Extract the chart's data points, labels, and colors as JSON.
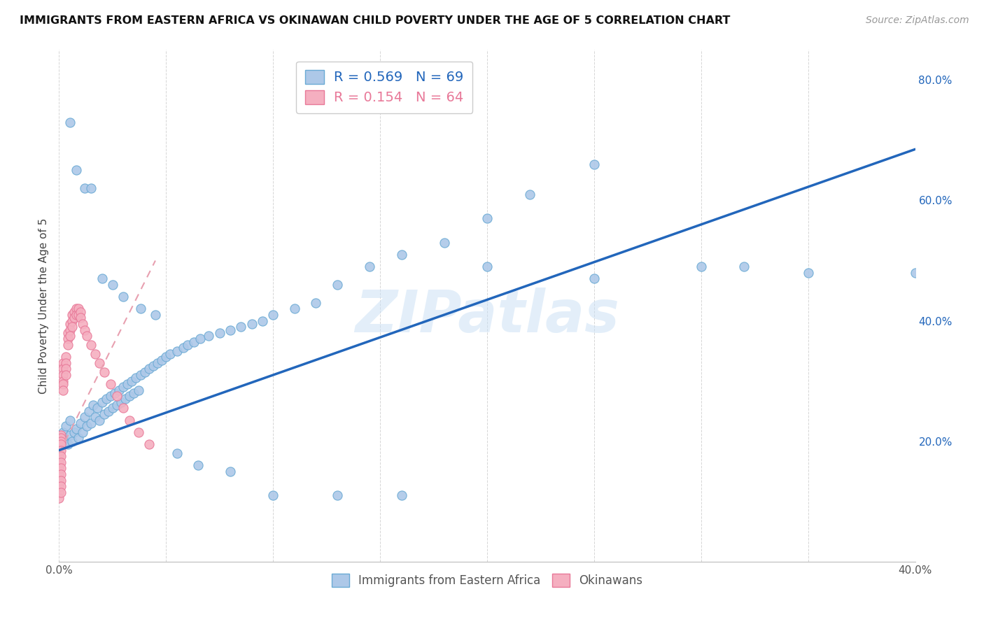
{
  "title": "IMMIGRANTS FROM EASTERN AFRICA VS OKINAWAN CHILD POVERTY UNDER THE AGE OF 5 CORRELATION CHART",
  "source": "Source: ZipAtlas.com",
  "ylabel": "Child Poverty Under the Age of 5",
  "xlim": [
    0,
    0.4
  ],
  "ylim": [
    0,
    0.85
  ],
  "x_ticks": [
    0.0,
    0.05,
    0.1,
    0.15,
    0.2,
    0.25,
    0.3,
    0.35,
    0.4
  ],
  "x_tick_labels": [
    "0.0%",
    "",
    "",
    "",
    "",
    "",
    "",
    "",
    "40.0%"
  ],
  "y_ticks_right": [
    0.2,
    0.4,
    0.6,
    0.8
  ],
  "y_tick_labels_right": [
    "20.0%",
    "40.0%",
    "60.0%",
    "80.0%"
  ],
  "blue_R": 0.569,
  "blue_N": 69,
  "pink_R": 0.154,
  "pink_N": 64,
  "blue_scatter_x": [
    0.001,
    0.002,
    0.003,
    0.003,
    0.004,
    0.005,
    0.005,
    0.006,
    0.007,
    0.008,
    0.009,
    0.01,
    0.011,
    0.012,
    0.013,
    0.014,
    0.015,
    0.016,
    0.017,
    0.018,
    0.019,
    0.02,
    0.021,
    0.022,
    0.023,
    0.024,
    0.025,
    0.026,
    0.027,
    0.028,
    0.029,
    0.03,
    0.031,
    0.032,
    0.033,
    0.034,
    0.035,
    0.036,
    0.037,
    0.038,
    0.04,
    0.042,
    0.044,
    0.046,
    0.048,
    0.05,
    0.052,
    0.055,
    0.058,
    0.06,
    0.063,
    0.066,
    0.07,
    0.075,
    0.08,
    0.085,
    0.09,
    0.095,
    0.1,
    0.11,
    0.12,
    0.13,
    0.145,
    0.16,
    0.18,
    0.2,
    0.22,
    0.25,
    0.32
  ],
  "blue_scatter_y": [
    0.205,
    0.215,
    0.2,
    0.225,
    0.195,
    0.21,
    0.235,
    0.2,
    0.215,
    0.22,
    0.205,
    0.23,
    0.215,
    0.24,
    0.225,
    0.25,
    0.23,
    0.26,
    0.24,
    0.255,
    0.235,
    0.265,
    0.245,
    0.27,
    0.25,
    0.275,
    0.255,
    0.28,
    0.26,
    0.285,
    0.265,
    0.29,
    0.27,
    0.295,
    0.275,
    0.3,
    0.28,
    0.305,
    0.285,
    0.31,
    0.315,
    0.32,
    0.325,
    0.33,
    0.335,
    0.34,
    0.345,
    0.35,
    0.355,
    0.36,
    0.365,
    0.37,
    0.375,
    0.38,
    0.385,
    0.39,
    0.395,
    0.4,
    0.41,
    0.42,
    0.43,
    0.46,
    0.49,
    0.51,
    0.53,
    0.57,
    0.61,
    0.66,
    0.49
  ],
  "blue_scatter_x2": [
    0.005,
    0.008,
    0.012,
    0.015,
    0.02,
    0.025,
    0.03,
    0.038,
    0.045,
    0.055,
    0.065,
    0.08,
    0.1,
    0.13,
    0.16,
    0.2,
    0.25,
    0.3,
    0.35,
    0.4
  ],
  "blue_scatter_y2": [
    0.73,
    0.65,
    0.62,
    0.62,
    0.47,
    0.46,
    0.44,
    0.42,
    0.41,
    0.18,
    0.16,
    0.15,
    0.11,
    0.11,
    0.11,
    0.49,
    0.47,
    0.49,
    0.48,
    0.48
  ],
  "blue_trendline_x": [
    0.0,
    0.4
  ],
  "blue_trendline_y": [
    0.185,
    0.685
  ],
  "pink_scatter_x": [
    0.0,
    0.0,
    0.0,
    0.0,
    0.0,
    0.0,
    0.0,
    0.0,
    0.0,
    0.0,
    0.0,
    0.0,
    0.001,
    0.001,
    0.001,
    0.001,
    0.001,
    0.001,
    0.001,
    0.001,
    0.001,
    0.001,
    0.001,
    0.001,
    0.002,
    0.002,
    0.002,
    0.002,
    0.002,
    0.002,
    0.003,
    0.003,
    0.003,
    0.003,
    0.004,
    0.004,
    0.004,
    0.005,
    0.005,
    0.005,
    0.006,
    0.006,
    0.006,
    0.007,
    0.007,
    0.008,
    0.008,
    0.009,
    0.009,
    0.01,
    0.01,
    0.011,
    0.012,
    0.013,
    0.015,
    0.017,
    0.019,
    0.021,
    0.024,
    0.027,
    0.03,
    0.033,
    0.037,
    0.042
  ],
  "pink_scatter_y": [
    0.2,
    0.195,
    0.19,
    0.185,
    0.175,
    0.165,
    0.155,
    0.145,
    0.135,
    0.125,
    0.115,
    0.105,
    0.21,
    0.205,
    0.2,
    0.195,
    0.185,
    0.175,
    0.165,
    0.155,
    0.145,
    0.135,
    0.125,
    0.115,
    0.33,
    0.32,
    0.31,
    0.3,
    0.295,
    0.285,
    0.34,
    0.33,
    0.32,
    0.31,
    0.38,
    0.37,
    0.36,
    0.395,
    0.385,
    0.375,
    0.41,
    0.4,
    0.39,
    0.415,
    0.405,
    0.42,
    0.41,
    0.42,
    0.41,
    0.415,
    0.405,
    0.395,
    0.385,
    0.375,
    0.36,
    0.345,
    0.33,
    0.315,
    0.295,
    0.275,
    0.255,
    0.235,
    0.215,
    0.195
  ],
  "pink_trendline_x": [
    0.0,
    0.045
  ],
  "pink_trendline_y": [
    0.18,
    0.5
  ],
  "blue_color": "#adc8e8",
  "blue_color_edge": "#6aaad4",
  "pink_color": "#f5afc0",
  "pink_color_edge": "#e87898",
  "blue_trend_color": "#2266bb",
  "pink_trend_color": "#e8a0b0",
  "legend_text_blue": "#2266bb",
  "legend_text_pink": "#e87898",
  "watermark": "ZIPatlas",
  "background_color": "#ffffff",
  "grid_color": "#cccccc"
}
